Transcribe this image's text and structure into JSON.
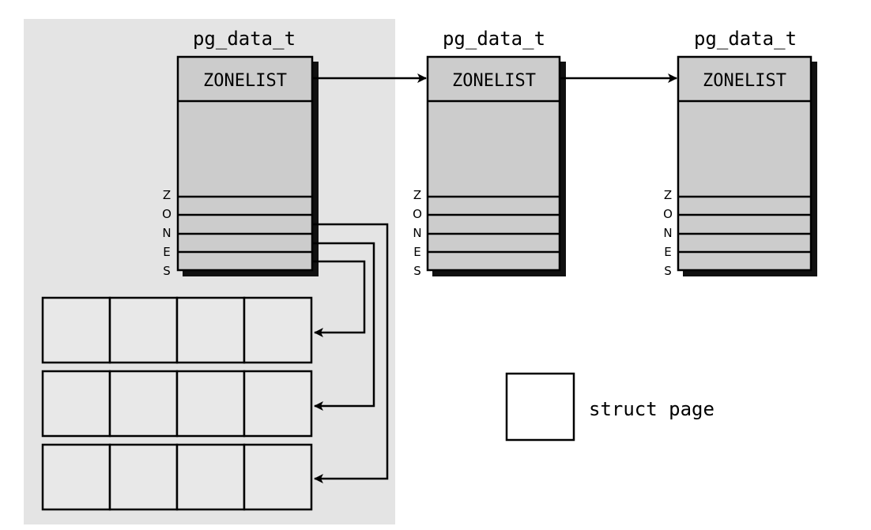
{
  "nodes": [
    {
      "title": "pg_data_t",
      "zonelist_label": "ZONELIST",
      "zones_label": [
        "Z",
        "O",
        "N",
        "E",
        "S"
      ]
    },
    {
      "title": "pg_data_t",
      "zonelist_label": "ZONELIST",
      "zones_label": [
        "Z",
        "O",
        "N",
        "E",
        "S"
      ]
    },
    {
      "title": "pg_data_t",
      "zonelist_label": "ZONELIST",
      "zones_label": [
        "Z",
        "O",
        "N",
        "E",
        "S"
      ]
    }
  ],
  "legend": {
    "label": "struct page"
  },
  "colors": {
    "background": "#ffffff",
    "local_region": "#e4e4e4",
    "node_fill": "#cccccc",
    "shadow": "#111111",
    "stroke": "#000000",
    "page_fill": "#e8e8e8"
  }
}
